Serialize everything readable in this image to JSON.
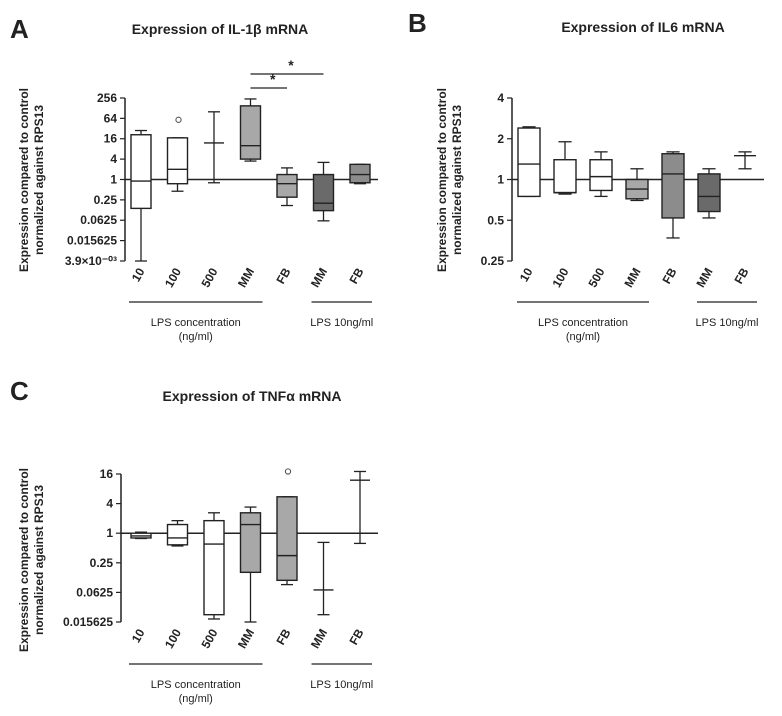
{
  "chart_data": [
    {
      "panel": "A",
      "type": "box",
      "title": "Expression of IL-1β mRNA",
      "ylabel_lines": [
        "Expression compared to control",
        "normalized against RPS13"
      ],
      "yscale": "log2",
      "ylim": [
        0.0039,
        256
      ],
      "yticks": [
        256,
        64,
        16,
        4,
        1,
        0.25,
        0.0625,
        0.015625,
        0.0039
      ],
      "ytick_labels": [
        "256",
        "64",
        "16",
        "4",
        "1",
        "0.25",
        "0.0625",
        "0.015625",
        "3.9×10⁻⁰³"
      ],
      "reference_line": 1,
      "categories": [
        "10",
        "100",
        "500",
        "MM",
        "FB",
        "MM",
        "FB"
      ],
      "fills": [
        "#ffffff",
        "#ffffff",
        "#ffffff",
        "#a8a8a8",
        "#a8a8a8",
        "#6a6a6a",
        "#8c8c8c"
      ],
      "boxes": [
        {
          "min": 0.0039,
          "q1": 0.14,
          "median": 0.9,
          "q3": 21,
          "max": 28,
          "outliers": []
        },
        {
          "min": 0.45,
          "q1": 0.75,
          "median": 2.0,
          "q3": 17,
          "max": 17,
          "outliers": [
            58
          ]
        },
        {
          "min": 0.8,
          "q1": 12,
          "median": 12,
          "q3": 12,
          "max": 100,
          "outliers": []
        },
        {
          "min": 3.5,
          "q1": 4.0,
          "median": 10,
          "q3": 150,
          "max": 240,
          "outliers": []
        },
        {
          "min": 0.17,
          "q1": 0.3,
          "median": 0.75,
          "q3": 1.4,
          "max": 2.2,
          "outliers": []
        },
        {
          "min": 0.06,
          "q1": 0.12,
          "median": 0.2,
          "q3": 1.4,
          "max": 3.2,
          "outliers": []
        },
        {
          "min": 0.75,
          "q1": 0.8,
          "median": 1.4,
          "q3": 2.8,
          "max": 2.8,
          "outliers": []
        }
      ],
      "group_labels": [
        {
          "text_lines": [
            "LPS concentration",
            "(ng/ml)"
          ],
          "from": 0,
          "to": 3
        },
        {
          "text_lines": [
            "LPS 10ng/ml"
          ],
          "from": 5,
          "to": 6
        }
      ],
      "significance": [
        {
          "from": 3,
          "to": 4,
          "label": "*"
        },
        {
          "from": 3,
          "to": 5,
          "label": "*"
        }
      ]
    },
    {
      "panel": "B",
      "type": "box",
      "title": "Expression of IL6 mRNA",
      "ylabel_lines": [
        "Expression compared to control",
        "normalized against RPS13"
      ],
      "yscale": "log2",
      "ylim": [
        0.25,
        4
      ],
      "yticks": [
        4,
        2,
        1,
        0.5,
        0.25
      ],
      "ytick_labels": [
        "4",
        "2",
        "1",
        "0.5",
        "0.25"
      ],
      "reference_line": 1,
      "categories": [
        "10",
        "100",
        "500",
        "MM",
        "FB",
        "MM",
        "FB"
      ],
      "fills": [
        "#ffffff",
        "#ffffff",
        "#ffffff",
        "#a8a8a8",
        "#8c8c8c",
        "#6a6a6a",
        "#ffffff"
      ],
      "boxes": [
        {
          "min": 0.75,
          "q1": 0.75,
          "median": 1.3,
          "q3": 2.4,
          "max": 2.45,
          "outliers": []
        },
        {
          "min": 0.78,
          "q1": 0.8,
          "median": 0.8,
          "q3": 1.4,
          "max": 1.9,
          "outliers": []
        },
        {
          "min": 0.75,
          "q1": 0.83,
          "median": 1.05,
          "q3": 1.4,
          "max": 1.6,
          "outliers": []
        },
        {
          "min": 0.7,
          "q1": 0.72,
          "median": 0.85,
          "q3": 1.0,
          "max": 1.2,
          "outliers": []
        },
        {
          "min": 0.37,
          "q1": 0.52,
          "median": 1.1,
          "q3": 1.55,
          "max": 1.6,
          "outliers": []
        },
        {
          "min": 0.52,
          "q1": 0.58,
          "median": 0.75,
          "q3": 1.1,
          "max": 1.2,
          "outliers": []
        },
        {
          "min": 1.2,
          "q1": 1.5,
          "median": 1.5,
          "q3": 1.5,
          "max": 1.6,
          "outliers": []
        }
      ],
      "group_labels": [
        {
          "text_lines": [
            "LPS concentration",
            "(ng/ml)"
          ],
          "from": 0,
          "to": 3
        },
        {
          "text_lines": [
            "LPS 10ng/ml"
          ],
          "from": 5,
          "to": 6
        }
      ],
      "significance": []
    },
    {
      "panel": "C",
      "type": "box",
      "title": "Expression of TNFα mRNA",
      "ylabel_lines": [
        "Expression compared to control",
        "normalized against RPS13"
      ],
      "yscale": "log2",
      "ylim": [
        0.015625,
        16
      ],
      "yticks": [
        16,
        4,
        1,
        0.25,
        0.0625,
        0.015625
      ],
      "ytick_labels": [
        "16",
        "4",
        "1",
        "0.25",
        "0.0625",
        "0.015625"
      ],
      "reference_line": 1,
      "categories": [
        "10",
        "100",
        "500",
        "MM",
        "FB",
        "MM",
        "FB"
      ],
      "fills": [
        "#ffffff",
        "#ffffff",
        "#ffffff",
        "#a8a8a8",
        "#a8a8a8",
        "#ffffff",
        "#ffffff"
      ],
      "boxes": [
        {
          "min": 0.78,
          "q1": 0.8,
          "median": 0.88,
          "q3": 1.0,
          "max": 1.05,
          "outliers": []
        },
        {
          "min": 0.55,
          "q1": 0.58,
          "median": 0.8,
          "q3": 1.5,
          "max": 1.8,
          "outliers": []
        },
        {
          "min": 0.018,
          "q1": 0.022,
          "median": 0.6,
          "q3": 1.8,
          "max": 2.6,
          "outliers": []
        },
        {
          "min": 0.015625,
          "q1": 0.16,
          "median": 1.5,
          "q3": 2.6,
          "max": 3.4,
          "outliers": []
        },
        {
          "min": 0.09,
          "q1": 0.11,
          "median": 0.35,
          "q3": 5.5,
          "max": 5.5,
          "outliers": [
            18
          ]
        },
        {
          "min": 0.022,
          "q1": 0.07,
          "median": 0.07,
          "q3": 0.07,
          "max": 0.65,
          "outliers": []
        },
        {
          "min": 0.62,
          "q1": 12,
          "median": 12,
          "q3": 12,
          "max": 18,
          "outliers": []
        }
      ],
      "group_labels": [
        {
          "text_lines": [
            "LPS concentration",
            "(ng/ml)"
          ],
          "from": 0,
          "to": 3
        },
        {
          "text_lines": [
            "LPS 10ng/ml"
          ],
          "from": 5,
          "to": 6
        }
      ],
      "significance": []
    }
  ]
}
